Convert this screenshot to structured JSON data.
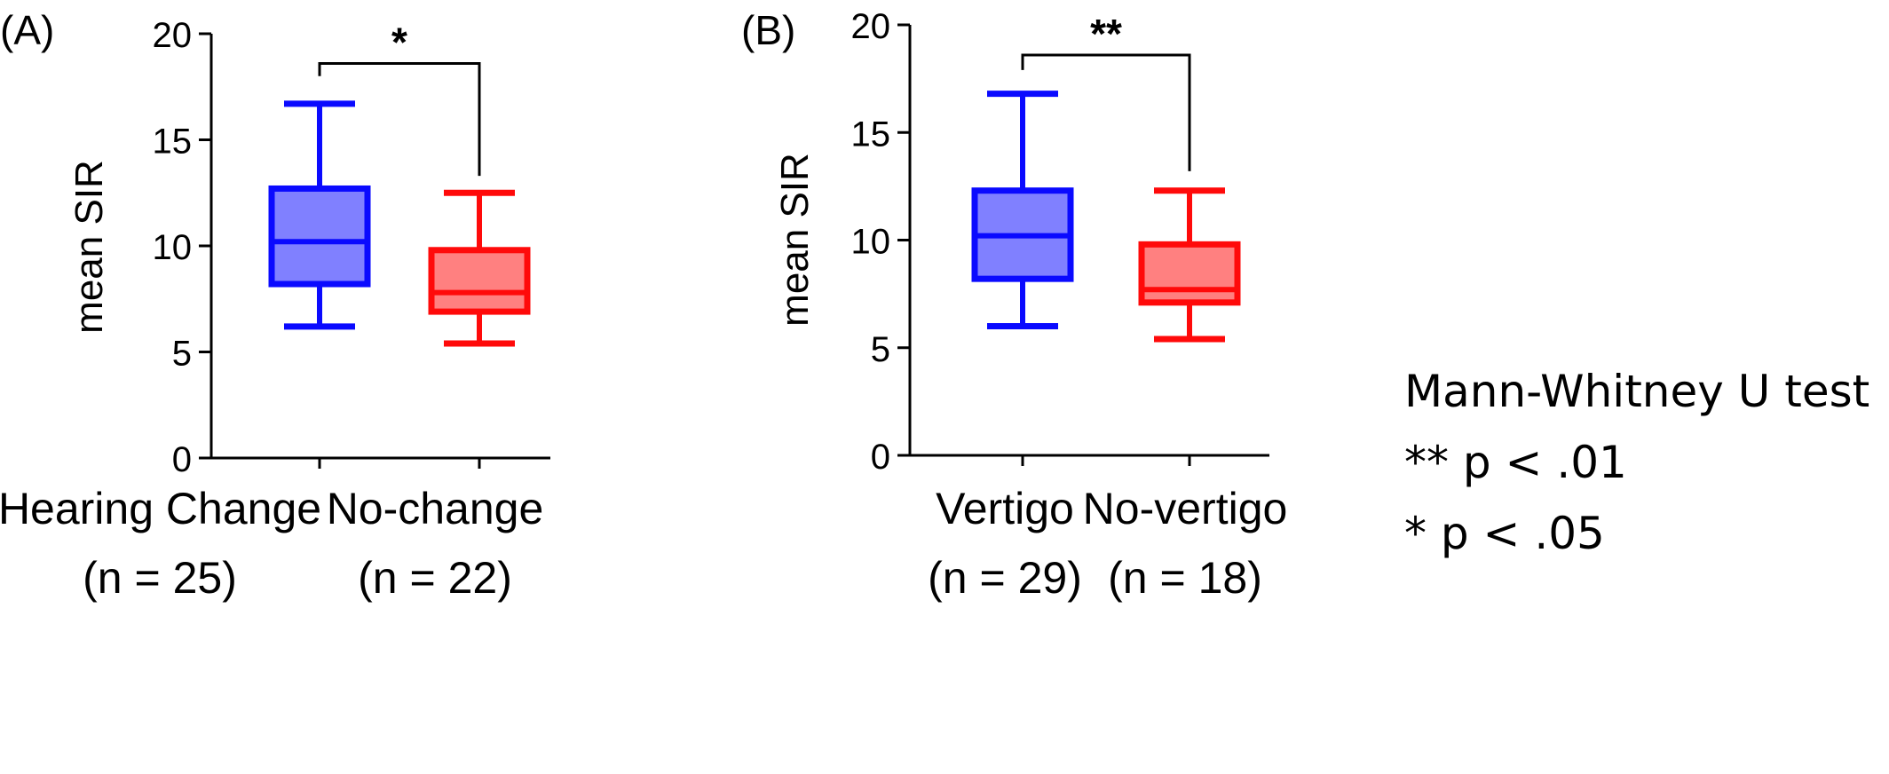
{
  "chart_data": [
    {
      "panel_label": "(A)",
      "type": "box",
      "ylabel": "mean SIR",
      "ylim": [
        0,
        20
      ],
      "yticks": [
        0,
        5,
        10,
        15,
        20
      ],
      "groups": [
        {
          "label": "Hearing Change",
          "n_label": "(n = 25)",
          "color": "#0a0aff",
          "fill": "#8080ff",
          "min": 6.2,
          "q1": 8.2,
          "median": 10.2,
          "q3": 12.7,
          "max": 16.7
        },
        {
          "label": "No-change",
          "n_label": "(n = 22)",
          "color": "#ff0a0a",
          "fill": "#ff8080",
          "min": 5.4,
          "q1": 6.9,
          "median": 7.8,
          "q3": 9.8,
          "max": 12.5
        }
      ],
      "significance": {
        "label": "*",
        "y": 18.6,
        "drop_to": [
          18.0,
          13.3
        ]
      }
    },
    {
      "panel_label": "(B)",
      "type": "box",
      "ylabel": "mean SIR",
      "ylim": [
        0,
        20
      ],
      "yticks": [
        0,
        5,
        10,
        15,
        20
      ],
      "groups": [
        {
          "label": "Vertigo",
          "n_label": "(n = 29)",
          "color": "#0a0aff",
          "fill": "#8080ff",
          "min": 6.0,
          "q1": 8.2,
          "median": 10.2,
          "q3": 12.3,
          "max": 16.8
        },
        {
          "label": "No-vertigo",
          "n_label": "(n = 18)",
          "color": "#ff0a0a",
          "fill": "#ff8080",
          "min": 5.4,
          "q1": 7.1,
          "median": 7.7,
          "q3": 9.8,
          "max": 12.3
        }
      ],
      "significance": {
        "label": "**",
        "y": 18.6,
        "drop_to": [
          17.9,
          13.2
        ]
      }
    }
  ],
  "legend": {
    "title": "Mann-Whitney U test",
    "lines": [
      "** p < .01",
      "* p < .05"
    ]
  }
}
